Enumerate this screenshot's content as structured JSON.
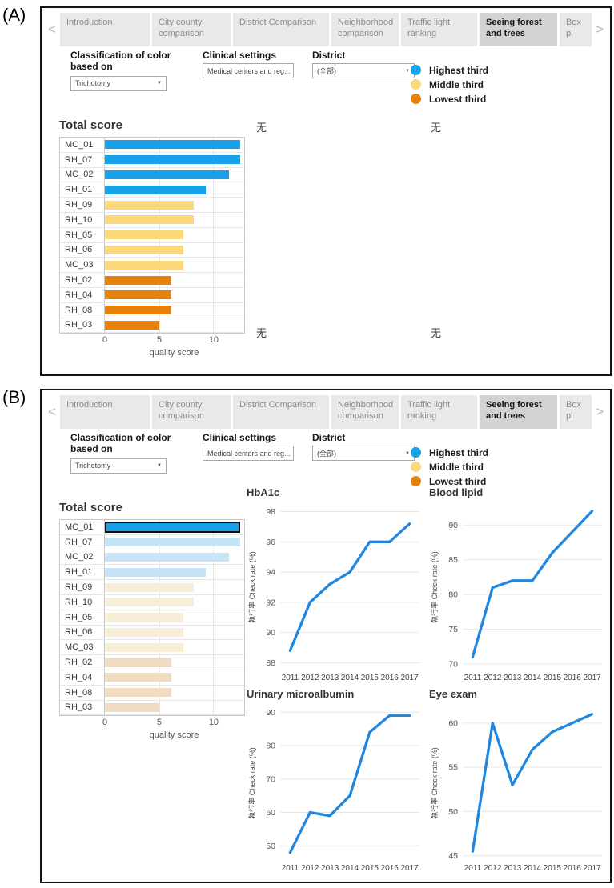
{
  "palette": {
    "highest": "#18a0e8",
    "middle": "#fbd87a",
    "lowest": "#e6820e",
    "dim": {
      "highest": "#c7e4f6",
      "middle": "#f6eed6",
      "lowest": "#efdcc1"
    },
    "line": "#1f87e0",
    "highlight_border": "#0d0d0d",
    "tab_selected_bg": "#d2d2d2",
    "tab_bg": "#e9e9e9"
  },
  "header": {
    "tabs": [
      {
        "label": "Introduction",
        "selected": false
      },
      {
        "label": "City county comparison",
        "selected": false
      },
      {
        "label": "District Comparison",
        "selected": false
      },
      {
        "label": "Neighborhood comparison",
        "selected": false
      },
      {
        "label": "Traffic light ranking",
        "selected": false
      },
      {
        "label": "Seeing forest and trees",
        "selected": true
      },
      {
        "label": "Box pl",
        "selected": false
      }
    ],
    "filters": {
      "classification": {
        "label": "Classification of color based on",
        "value": "Trichotomy"
      },
      "clinical": {
        "label": "Clinical settings",
        "value": "Medical centers and reg..."
      },
      "district": {
        "label": "District",
        "value": "(全部)"
      }
    },
    "legend": [
      {
        "label": "Highest third",
        "color": "#18a0e8"
      },
      {
        "label": "Middle third",
        "color": "#fbd87a"
      },
      {
        "label": "Lowest third",
        "color": "#e6820e"
      }
    ]
  },
  "panel_a": {
    "label": "(A)",
    "no_data_symbol": "无"
  },
  "panel_b": {
    "label": "(B)"
  },
  "chart_data": [
    {
      "type": "bar",
      "panel": "A",
      "orientation": "horizontal",
      "title": "Total score",
      "xlabel": "quality score",
      "categories": [
        "MC_01",
        "RH_07",
        "MC_02",
        "RH_01",
        "RH_09",
        "RH_10",
        "RH_05",
        "RH_06",
        "MC_03",
        "RH_02",
        "RH_04",
        "RH_08",
        "RH_03"
      ],
      "values": [
        12.4,
        12.4,
        11.4,
        9.3,
        8.2,
        8.2,
        7.2,
        7.2,
        7.2,
        6.1,
        6.1,
        6.1,
        5.0
      ],
      "thirds": [
        "highest",
        "highest",
        "highest",
        "highest",
        "middle",
        "middle",
        "middle",
        "middle",
        "middle",
        "lowest",
        "lowest",
        "lowest",
        "lowest"
      ],
      "xlim": [
        0,
        12.8
      ],
      "xticks": [
        0,
        5,
        10
      ],
      "grid": true
    },
    {
      "type": "bar",
      "panel": "B",
      "orientation": "horizontal",
      "title": "Total score",
      "xlabel": "quality score",
      "categories": [
        "MC_01",
        "RH_07",
        "MC_02",
        "RH_01",
        "RH_09",
        "RH_10",
        "RH_05",
        "RH_06",
        "MC_03",
        "RH_02",
        "RH_04",
        "RH_08",
        "RH_03"
      ],
      "values": [
        12.4,
        12.4,
        11.4,
        9.3,
        8.2,
        8.2,
        7.2,
        7.2,
        7.2,
        6.1,
        6.1,
        6.1,
        5.0
      ],
      "thirds": [
        "highest",
        "highest",
        "highest",
        "highest",
        "middle",
        "middle",
        "middle",
        "middle",
        "middle",
        "lowest",
        "lowest",
        "lowest",
        "lowest"
      ],
      "xlim": [
        0,
        12.8
      ],
      "xticks": [
        0,
        5,
        10
      ],
      "grid": true,
      "dimmed": true,
      "highlighted_category": "MC_01"
    },
    {
      "type": "line",
      "panel": "B",
      "title": "HbA1c",
      "ylabel": "執行率 Check rate (%)",
      "x": [
        2011,
        2012,
        2013,
        2014,
        2015,
        2016,
        2017
      ],
      "values": [
        88.8,
        92,
        93.2,
        94,
        96,
        96,
        97.2
      ],
      "yticks": [
        88,
        90,
        92,
        94,
        96,
        98
      ],
      "ylim": [
        87.6,
        98.4
      ],
      "grid": true,
      "legend_position": "none"
    },
    {
      "type": "line",
      "panel": "B",
      "title": "Blood lipid",
      "ylabel": "執行率 Check rate (%)",
      "x": [
        2011,
        2012,
        2013,
        2014,
        2015,
        2016,
        2017
      ],
      "values": [
        71,
        81,
        82,
        82,
        86,
        89,
        92
      ],
      "yticks": [
        70,
        75,
        80,
        85,
        90
      ],
      "ylim": [
        69.3,
        92.8
      ],
      "grid": true,
      "legend_position": "none"
    },
    {
      "type": "line",
      "panel": "B",
      "title": "Urinary microalbumin",
      "ylabel": "執行率 Check rate (%)",
      "x": [
        2011,
        2012,
        2013,
        2014,
        2015,
        2016,
        2017
      ],
      "values": [
        48,
        60,
        59,
        65,
        84,
        89,
        89
      ],
      "yticks": [
        50,
        60,
        70,
        80,
        90
      ],
      "ylim": [
        46,
        91.5
      ],
      "grid": true,
      "legend_position": "none"
    },
    {
      "type": "line",
      "panel": "B",
      "title": "Eye exam",
      "ylabel": "執行率 Check rate (%)",
      "x": [
        2011,
        2012,
        2013,
        2014,
        2015,
        2016,
        2017
      ],
      "values": [
        45.5,
        60,
        53,
        57,
        59,
        60,
        61
      ],
      "yticks": [
        45,
        50,
        55,
        60
      ],
      "ylim": [
        44.6,
        61.8
      ],
      "grid": true,
      "legend_position": "none"
    }
  ]
}
